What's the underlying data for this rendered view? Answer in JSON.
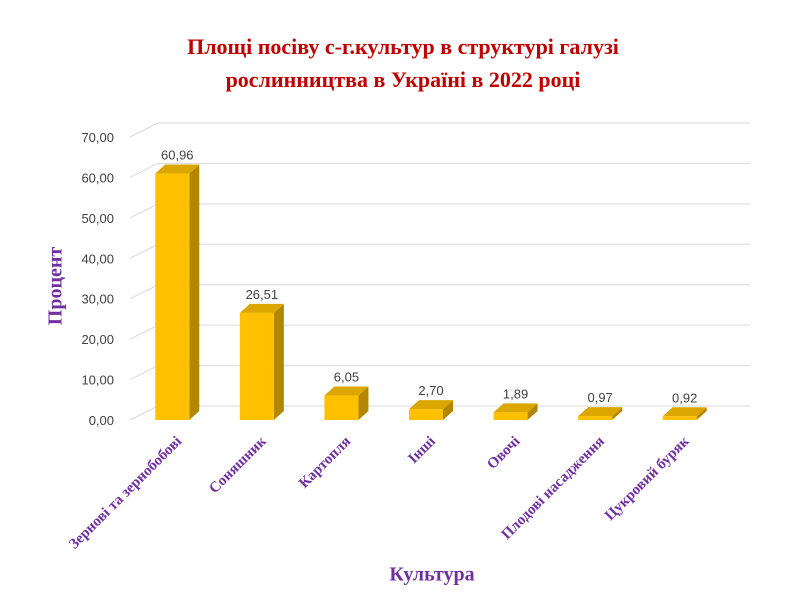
{
  "chart_data": {
    "type": "bar",
    "title_lines": [
      "Площі посіву с-г.культур в структурі галузі",
      "рослинництва в Україні в 2022 році"
    ],
    "xlabel": "Культура",
    "ylabel": "Процент",
    "categories": [
      "Зернові та зернобобові",
      "Соняшник",
      "Картопля",
      "Інші",
      "Овочі",
      "Плодові насадження",
      "Цукровий буряк"
    ],
    "values": [
      60.96,
      26.51,
      6.05,
      2.7,
      1.89,
      0.97,
      0.92
    ],
    "data_labels": [
      "60,96",
      "26,51",
      "6,05",
      "2,70",
      "1,89",
      "0,97",
      "0,92"
    ],
    "ylim": [
      0,
      70
    ],
    "yticks": [
      "0,00",
      "10,00",
      "20,00",
      "30,00",
      "40,00",
      "50,00",
      "60,00",
      "70,00"
    ],
    "grid": true,
    "style": "3d",
    "colors": {
      "bar_front": "#ffc000",
      "bar_side": "#b38600",
      "bar_top": "#dba600",
      "title": "#c00000",
      "axis_title": "#7030a0"
    }
  }
}
